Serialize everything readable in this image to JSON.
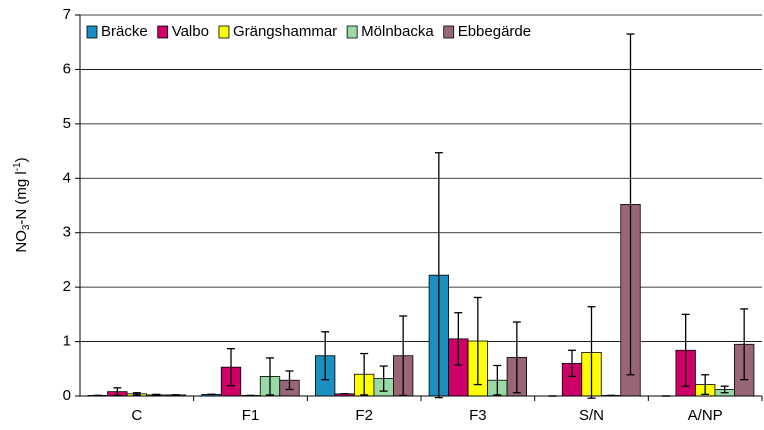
{
  "chart_data": {
    "type": "bar",
    "ylabel_parts": [
      "NO",
      "3",
      "-N (mg l",
      "-1",
      ")"
    ],
    "categories": [
      "C",
      "F1",
      "F2",
      "F3",
      "S/N",
      "A/NP"
    ],
    "series": [
      {
        "name": "Bräcke",
        "color": "#1a8fc0",
        "values": [
          0.01,
          0.03,
          0.74,
          2.22,
          0,
          0
        ],
        "errors": [
          0,
          0,
          0.44,
          2.25,
          0,
          0
        ]
      },
      {
        "name": "Valbo",
        "color": "#cc0066",
        "values": [
          0.08,
          0.53,
          0.04,
          1.05,
          0.6,
          0.84
        ],
        "errors": [
          0.07,
          0.34,
          0,
          0.48,
          0.24,
          0.66
        ]
      },
      {
        "name": "Grängshammar",
        "color": "#ffff00",
        "values": [
          0.04,
          0.01,
          0.4,
          1.01,
          0.8,
          0.21
        ],
        "errors": [
          0.02,
          0,
          0.38,
          0.8,
          0.84,
          0.18
        ]
      },
      {
        "name": "Mölnbacka",
        "color": "#99d9a6",
        "values": [
          0.02,
          0.36,
          0.32,
          0.29,
          0.01,
          0.12
        ],
        "errors": [
          0.01,
          0.34,
          0.23,
          0.27,
          0,
          0.06
        ]
      },
      {
        "name": "Ebbegärde",
        "color": "#996677",
        "values": [
          0.02,
          0.29,
          0.74,
          0.71,
          3.52,
          0.95
        ],
        "errors": [
          0,
          0.17,
          0.73,
          0.65,
          3.13,
          0.65
        ]
      }
    ],
    "ylim": [
      0,
      7
    ],
    "yticks": [
      0,
      1,
      2,
      3,
      4,
      5,
      6,
      7
    ],
    "grid": true,
    "legend": "top-left"
  }
}
